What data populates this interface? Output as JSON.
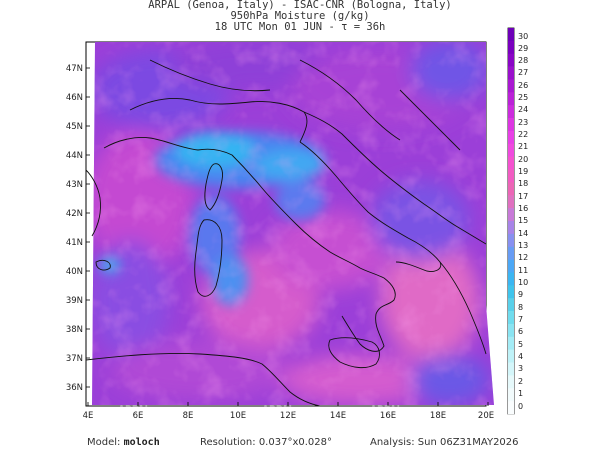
{
  "header": {
    "line1": "ARPAL (Genoa, Italy)  -  ISAC-CNR (Bologna, Italy)",
    "line2": "950hPa Moisture (g/kg)",
    "line3": "18 UTC Mon 01 JUN  -  τ = 36h"
  },
  "axes": {
    "lat_labels": [
      "47N",
      "46N",
      "45N",
      "44N",
      "43N",
      "42N",
      "41N",
      "40N",
      "39N",
      "38N",
      "37N",
      "36N"
    ],
    "lon_labels": [
      "4E",
      "6E",
      "8E",
      "10E",
      "12E",
      "14E",
      "16E",
      "18E",
      "20E"
    ]
  },
  "colorbar": {
    "labels": [
      "30",
      "29",
      "28",
      "27",
      "26",
      "25",
      "24",
      "23",
      "22",
      "21",
      "20",
      "19",
      "18",
      "17",
      "16",
      "15",
      "14",
      "13",
      "12",
      "11",
      "10",
      "9",
      "8",
      "7",
      "6",
      "5",
      "4",
      "3",
      "2",
      "1",
      "0"
    ],
    "colors": [
      "#6e00b8",
      "#7a00bf",
      "#8a05c6",
      "#9a10cc",
      "#aa18d2",
      "#bb22d8",
      "#cc2cde",
      "#dd36e2",
      "#e840e6",
      "#f04adf",
      "#f552d0",
      "#f25cc2",
      "#ec66b6",
      "#e070c0",
      "#c87ad8",
      "#a884e8",
      "#8890f0",
      "#689cf4",
      "#4ca8f6",
      "#3cb6f2",
      "#40c4ec",
      "#5ad0ea",
      "#70dcee",
      "#8ae4f2",
      "#a4ecf6",
      "#bff2f8",
      "#d4f6fa",
      "#e6f9fb",
      "#f2fbfc",
      "#fafdfe"
    ],
    "accent_map_palette": [
      "#9a3fd6",
      "#b03ed8",
      "#8a48e0",
      "#6e58e8",
      "#c94bd6",
      "#e15cc8",
      "#5a7af0",
      "#3fa9f2"
    ]
  },
  "watermark": "ARPAL",
  "footer": {
    "model_label": "Model:",
    "model_value": "moloch",
    "resolution_label": "Resolution:",
    "resolution_value": "0.037°x0.028°",
    "analysis_label": "Analysis:",
    "analysis_value": "Sun 06Z31MAY2026"
  }
}
